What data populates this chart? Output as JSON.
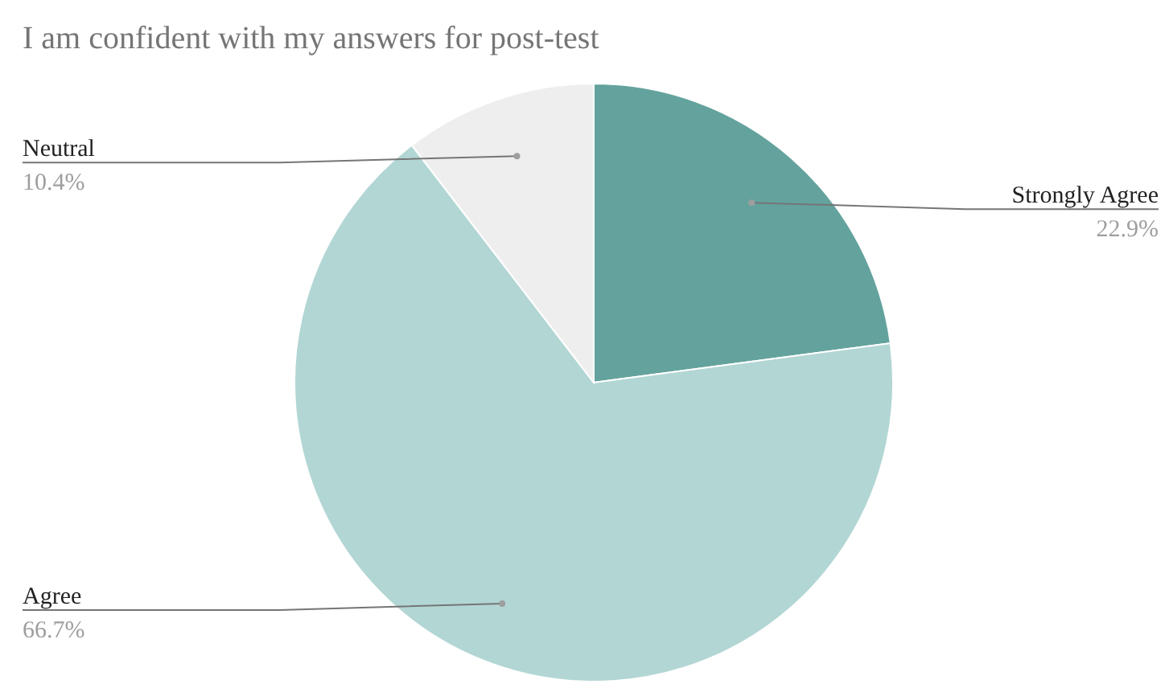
{
  "chart_data": {
    "type": "pie",
    "title": "I am confident with my answers for post-test",
    "categories": [
      "Strongly Agree",
      "Agree",
      "Neutral"
    ],
    "values": [
      22.9,
      66.7,
      10.4
    ],
    "value_labels": [
      "22.9%",
      "66.7%",
      "10.4%"
    ],
    "colors": [
      "#64a39d",
      "#b2d6d4",
      "#eeeeee"
    ],
    "legend": false
  }
}
